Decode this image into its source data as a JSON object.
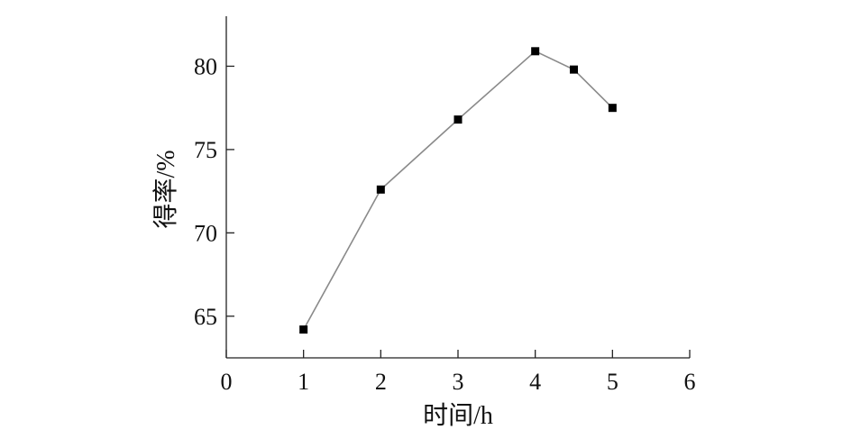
{
  "chart_data": {
    "type": "line",
    "xlabel": "时间/h",
    "ylabel": "得率/%",
    "xlim": [
      0,
      6
    ],
    "ylim": [
      62.5,
      83
    ],
    "xticks": [
      "0",
      "1",
      "2",
      "3",
      "4",
      "5",
      "6"
    ],
    "yticks": [
      "65",
      "70",
      "75",
      "80"
    ],
    "grid": false,
    "series": [
      {
        "x": [
          1,
          2,
          3,
          4,
          4.5,
          5
        ],
        "y": [
          64.2,
          72.6,
          76.8,
          80.9,
          79.8,
          77.5
        ]
      }
    ],
    "colors": {
      "line": "#8a8a8a",
      "marker": "#000000",
      "axis": "#222222"
    }
  }
}
